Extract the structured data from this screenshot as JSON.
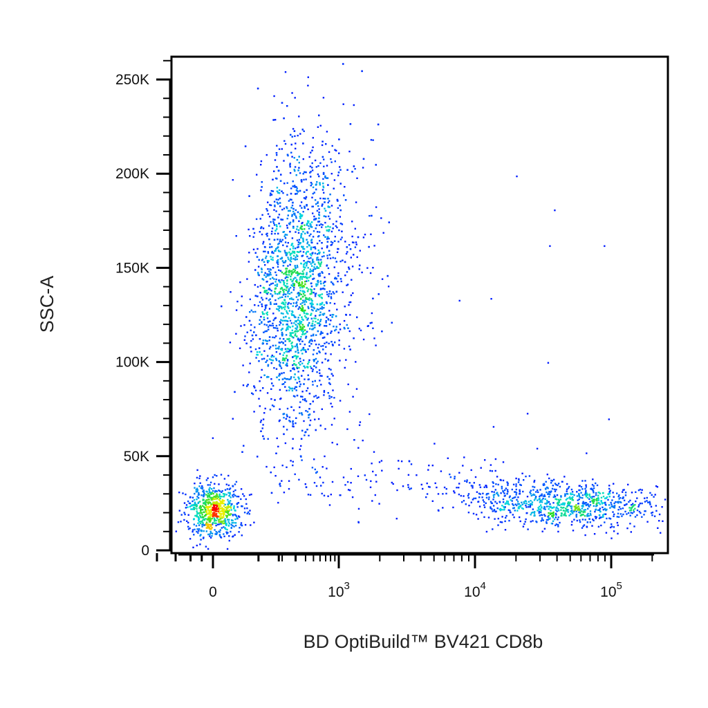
{
  "chart_data": {
    "type": "scatter",
    "title": "",
    "xlabel": "BD OptiBuild™ BV421 CD8b",
    "ylabel": "SSC-A",
    "x_scale": "biexponential",
    "y_scale": "linear",
    "xlim": [
      -200,
      200000
    ],
    "ylim": [
      -5000,
      262144
    ],
    "x_ticks": [
      {
        "value": 0,
        "base": "0",
        "exp": ""
      },
      {
        "value": 1000,
        "base": "10",
        "exp": "3"
      },
      {
        "value": 10000,
        "base": "10",
        "exp": "4"
      },
      {
        "value": 100000,
        "base": "10",
        "exp": "5"
      }
    ],
    "y_ticks": [
      {
        "value": 0,
        "label": "0"
      },
      {
        "value": 50000,
        "label": "50K"
      },
      {
        "value": 100000,
        "label": "100K"
      },
      {
        "value": 150000,
        "label": "150K"
      },
      {
        "value": 200000,
        "label": "200K"
      },
      {
        "value": 250000,
        "label": "250K"
      }
    ],
    "color_map": "density (blue → cyan → green → yellow → red)",
    "grid": false,
    "legend": "none",
    "populations": [
      {
        "name": "",
        "x_center": 0,
        "y_center": 22000,
        "x_spread_decades": 0.5,
        "y_spread": 7000,
        "relative_events": 700
      },
      {
        "name": "",
        "x_center": 250,
        "y_center": 140000,
        "x_spread_decades": 0.25,
        "y_spread": 38000,
        "relative_events": 2600
      },
      {
        "name": "",
        "x_center": 45000,
        "y_center": 25000,
        "x_spread_decades": 0.35,
        "y_spread": 6000,
        "relative_events": 900
      }
    ],
    "representative_points": [
      [
        20000,
        199000
      ],
      [
        38000,
        181000
      ],
      [
        35000,
        162000
      ],
      [
        88000,
        162000
      ],
      [
        7600,
        133000
      ],
      [
        13000,
        134000
      ],
      [
        34000,
        100000
      ],
      [
        24000,
        73000
      ],
      [
        95000,
        70000
      ],
      [
        13500,
        66000
      ],
      [
        2100,
        169000
      ],
      [
        1800,
        113000
      ],
      [
        1300,
        203000
      ],
      [
        1000,
        204000
      ],
      [
        2700,
        48000
      ],
      [
        65000,
        52000
      ]
    ]
  },
  "colors": {
    "background": "#ffffff",
    "frame": "#000000",
    "low_density": "#0000ff",
    "mid_density": "#00e0e0",
    "high_density": "#ff0000"
  }
}
